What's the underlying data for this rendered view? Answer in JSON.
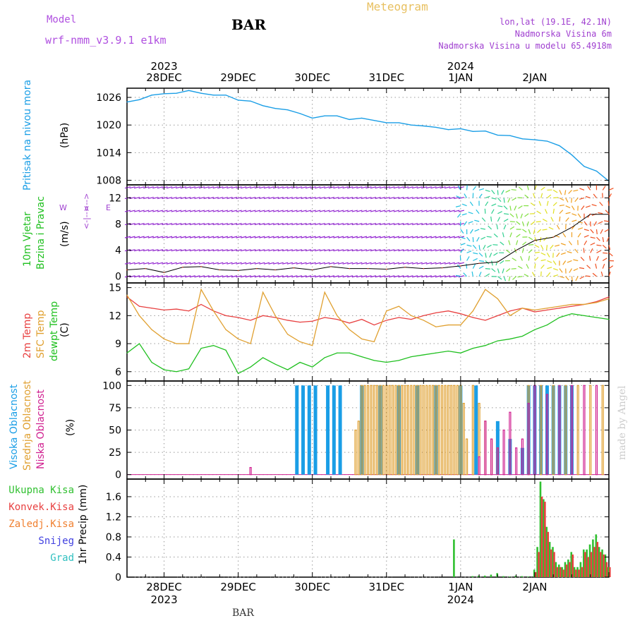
{
  "header": {
    "model_label": "Model",
    "model_name": "wrf-nmm_v3.9.1  e1km",
    "station": "BAR",
    "title": "Meteogram",
    "location": "lon,lat (19.1E, 42.1N)",
    "elevation": "Nadmorska Visina 6m",
    "model_elevation": "Nadmorska Visina u modelu 65.4918m"
  },
  "footer": {
    "station": "BAR",
    "watermark": "made by Angel"
  },
  "time_axis": {
    "top_years": [
      {
        "label": "2023",
        "index": 0
      },
      {
        "label": "2024",
        "index": 4
      }
    ],
    "days": [
      "28DEC",
      "29DEC",
      "30DEC",
      "31DEC",
      "1JAN",
      "2JAN"
    ],
    "bottom_years": [
      {
        "label": "2023",
        "index": 0
      },
      {
        "label": "2024",
        "index": 4
      }
    ],
    "x_range_hours": [
      -12,
      144
    ]
  },
  "colors": {
    "pressure": "#1a9ee6",
    "temp2m": "#e84040",
    "sfc_temp": "#e0a030",
    "dewpoint": "#20c020",
    "wind_arrows": "#9020d0",
    "high_cloud": "#1a9ee6",
    "mid_cloud": "#e0a030",
    "low_cloud": "#d02090",
    "total_precip": "#30c030",
    "conv_precip": "#e84040"
  },
  "panels": {
    "pressure": {
      "ylabel_main": "Pritisak na nivou mora",
      "ylabel_unit": "(hPa)"
    },
    "wind": {
      "ylabel_1": "10m Vjetar",
      "ylabel_2": "Brzina i Pravac",
      "ylabel_unit": "(m/s)",
      "compass_w": "W",
      "compass_e": "E",
      "compass_n": "<-->",
      "compass_s": "<-|-->"
    },
    "temp": {
      "ylabel_1": "2m Temp",
      "ylabel_2": "SFC Temp",
      "ylabel_3": "dewpt Temp",
      "ylabel_unit": "(C)"
    },
    "cloud": {
      "ylabel_1": "Visoka Oblacnost",
      "ylabel_2": "Srednja Oblacnost",
      "ylabel_3": "Niska Oblacnost",
      "ylabel_unit": "(%)"
    },
    "precip": {
      "legend": [
        "Ukupna Kisa",
        "Konvek.Kisa",
        "Zaledj.Kisa",
        "Snijeg",
        "Grad"
      ],
      "legend_colors": [
        "#30c030",
        "#e84040",
        "#f08030",
        "#4040e0",
        "#30c0c0"
      ],
      "ylabel": "1hr Precip (mm)"
    }
  },
  "chart_data": [
    {
      "type": "line",
      "title": "",
      "ylabel": "Pritisak na nivou mora (hPa)",
      "ylim": [
        1007,
        1028
      ],
      "yticks": [
        1008,
        1014,
        1020,
        1026
      ],
      "series": [
        {
          "name": "Pritisak na nivou mora",
          "x": [
            -12,
            -8,
            -4,
            0,
            4,
            8,
            12,
            16,
            20,
            24,
            28,
            32,
            36,
            40,
            44,
            48,
            52,
            56,
            60,
            64,
            68,
            72,
            76,
            80,
            84,
            88,
            92,
            96,
            100,
            104,
            108,
            112,
            116,
            120,
            124,
            128,
            132,
            136,
            140,
            144
          ],
          "values": [
            1025.0,
            1025.5,
            1026.5,
            1026.8,
            1026.9,
            1027.5,
            1026.9,
            1026.5,
            1026.5,
            1025.4,
            1025.2,
            1024.2,
            1023.6,
            1023.3,
            1022.5,
            1021.5,
            1022.0,
            1022.0,
            1021.2,
            1021.5,
            1021.0,
            1020.5,
            1020.5,
            1020.0,
            1019.8,
            1019.5,
            1019.0,
            1019.2,
            1018.6,
            1018.7,
            1017.8,
            1017.7,
            1017.0,
            1016.8,
            1016.5,
            1015.5,
            1013.5,
            1011.0,
            1010.0,
            1007.8
          ]
        }
      ]
    },
    {
      "type": "scatter",
      "title": "",
      "ylabel": "10m Vjetar Brzina i Pravac (m/s)",
      "ylim": [
        -1,
        14
      ],
      "yticks": [
        0,
        4,
        8,
        12
      ],
      "series": [
        {
          "name": "Brzina i Pravac",
          "x": [
            -12,
            -6,
            0,
            6,
            12,
            18,
            24,
            30,
            36,
            42,
            48,
            54,
            60,
            66,
            72,
            78,
            84,
            90,
            96,
            102,
            108,
            114,
            120,
            126,
            132,
            138,
            144
          ],
          "values": [
            1.0,
            1.2,
            0.6,
            1.4,
            1.5,
            1.0,
            0.9,
            1.2,
            1.0,
            1.3,
            1.0,
            1.5,
            1.2,
            1.2,
            1.1,
            1.4,
            1.2,
            1.3,
            1.6,
            2.0,
            2.2,
            4.0,
            5.5,
            6.0,
            7.5,
            9.5,
            9.5
          ]
        }
      ]
    },
    {
      "type": "line",
      "title": "",
      "ylabel": "(C)",
      "ylim": [
        5,
        15.5
      ],
      "yticks": [
        6,
        9,
        12,
        15
      ],
      "series": [
        {
          "name": "2m Temp",
          "x": [
            -12,
            -8,
            -4,
            0,
            4,
            8,
            12,
            16,
            20,
            24,
            28,
            32,
            36,
            40,
            44,
            48,
            52,
            56,
            60,
            64,
            68,
            72,
            76,
            80,
            84,
            88,
            92,
            96,
            100,
            104,
            108,
            112,
            116,
            120,
            124,
            128,
            132,
            136,
            140,
            144
          ],
          "values": [
            14.0,
            13.0,
            12.8,
            12.6,
            12.7,
            12.5,
            13.2,
            12.5,
            12.0,
            11.8,
            11.5,
            12.0,
            11.8,
            11.5,
            11.3,
            11.4,
            11.8,
            11.6,
            11.2,
            11.6,
            11.0,
            11.5,
            11.8,
            11.6,
            12.0,
            12.3,
            12.5,
            12.2,
            11.8,
            11.5,
            12.0,
            12.5,
            12.8,
            12.4,
            12.6,
            12.8,
            13.0,
            13.2,
            13.5,
            14.0
          ]
        },
        {
          "name": "SFC Temp",
          "x": [
            -12,
            -8,
            -4,
            0,
            4,
            8,
            12,
            16,
            20,
            24,
            28,
            32,
            36,
            40,
            44,
            48,
            52,
            56,
            60,
            64,
            68,
            72,
            76,
            80,
            84,
            88,
            92,
            96,
            100,
            104,
            108,
            112,
            116,
            120,
            124,
            128,
            132,
            136,
            140,
            144
          ],
          "values": [
            14.2,
            12.0,
            10.5,
            9.5,
            9.0,
            9.0,
            14.8,
            12.5,
            10.5,
            9.5,
            9.0,
            14.5,
            12.0,
            10.0,
            9.2,
            8.8,
            14.5,
            12.0,
            10.5,
            9.5,
            9.2,
            12.5,
            13.0,
            12.0,
            11.5,
            10.8,
            11.0,
            11.0,
            12.5,
            14.8,
            13.8,
            12.0,
            12.8,
            12.6,
            12.8,
            13.0,
            13.2,
            13.2,
            13.4,
            13.8
          ]
        },
        {
          "name": "dewpt Temp",
          "x": [
            -12,
            -8,
            -4,
            0,
            4,
            8,
            12,
            16,
            20,
            24,
            28,
            32,
            36,
            40,
            44,
            48,
            52,
            56,
            60,
            64,
            68,
            72,
            76,
            80,
            84,
            88,
            92,
            96,
            100,
            104,
            108,
            112,
            116,
            120,
            124,
            128,
            132,
            136,
            140,
            144
          ],
          "values": [
            8.0,
            9.0,
            7.0,
            6.2,
            6.0,
            6.3,
            8.5,
            8.8,
            8.3,
            5.8,
            6.5,
            7.5,
            6.8,
            6.2,
            7.0,
            6.5,
            7.5,
            8.0,
            8.0,
            7.6,
            7.2,
            7.0,
            7.2,
            7.6,
            7.8,
            8.0,
            8.2,
            8.0,
            8.5,
            8.8,
            9.3,
            9.5,
            9.8,
            10.5,
            11.0,
            11.8,
            12.2,
            12.0,
            11.8,
            11.6
          ]
        }
      ]
    },
    {
      "type": "bar",
      "title": "",
      "ylabel": "(%)",
      "ylim": [
        -5,
        105
      ],
      "yticks": [
        0,
        25,
        50,
        75,
        100
      ],
      "series": [
        {
          "name": "Visoka Oblacnost",
          "x": [
            43,
            45,
            47,
            49,
            53,
            55,
            57,
            64,
            70,
            76,
            82,
            88,
            96,
            101,
            108,
            112,
            116,
            118,
            120,
            122,
            124,
            126,
            128,
            130,
            132
          ],
          "values": [
            100,
            100,
            100,
            100,
            100,
            100,
            100,
            100,
            100,
            100,
            100,
            100,
            100,
            100,
            60,
            40,
            30,
            100,
            100,
            100,
            100,
            100,
            100,
            100,
            100
          ]
        },
        {
          "name": "Srednja Oblacnost",
          "x": [
            62,
            63,
            64,
            65,
            66,
            67,
            68,
            69,
            70,
            71,
            72,
            73,
            74,
            75,
            76,
            77,
            78,
            79,
            80,
            81,
            82,
            83,
            84,
            85,
            86,
            87,
            88,
            89,
            90,
            91,
            92,
            93,
            94,
            95,
            96,
            97,
            98,
            100,
            102,
            104,
            106,
            108,
            118,
            122,
            126,
            130,
            134,
            138,
            142
          ],
          "values": [
            50,
            60,
            100,
            100,
            100,
            100,
            100,
            100,
            100,
            100,
            100,
            100,
            100,
            100,
            100,
            100,
            100,
            100,
            100,
            100,
            100,
            100,
            100,
            100,
            100,
            100,
            100,
            100,
            100,
            100,
            100,
            100,
            100,
            100,
            100,
            80,
            40,
            100,
            80,
            60,
            40,
            30,
            100,
            100,
            100,
            100,
            100,
            100,
            100
          ]
        },
        {
          "name": "Niska Oblacnost",
          "x": [
            28,
            102,
            104,
            106,
            108,
            110,
            112,
            114,
            116,
            118,
            120,
            124,
            128,
            132,
            136,
            140
          ],
          "values": [
            8,
            20,
            60,
            40,
            30,
            50,
            70,
            30,
            40,
            80,
            100,
            90,
            100,
            100,
            100,
            100
          ]
        }
      ]
    },
    {
      "type": "bar",
      "title": "",
      "ylabel": "1hr Precip (mm)",
      "ylim": [
        0,
        1.95
      ],
      "yticks": [
        0,
        0.4,
        0.8,
        1.2,
        1.6
      ],
      "series": [
        {
          "name": "Ukupna Kisa",
          "x": [
            94,
            100,
            102,
            104,
            106,
            108,
            110,
            112,
            114,
            116,
            118,
            120,
            121,
            122,
            123,
            124,
            125,
            126,
            127,
            128,
            129,
            130,
            131,
            132,
            133,
            134,
            135,
            136,
            137,
            138,
            139,
            140,
            141,
            142,
            143,
            144
          ],
          "values": [
            0.75,
            0.02,
            0.03,
            0.03,
            0.05,
            0.08,
            0.02,
            0.01,
            0.03,
            0.02,
            0.01,
            0.15,
            0.6,
            1.9,
            1.55,
            1.0,
            0.7,
            0.6,
            0.3,
            0.25,
            0.2,
            0.3,
            0.35,
            0.5,
            0.2,
            0.2,
            0.3,
            0.55,
            0.55,
            0.65,
            0.75,
            0.85,
            0.6,
            0.55,
            0.45,
            0.2
          ]
        },
        {
          "name": "Konvek.Kisa",
          "x": [
            120,
            121,
            122,
            123,
            124,
            125,
            126,
            127,
            128,
            129,
            130,
            131,
            132,
            133,
            134,
            135,
            136,
            137,
            138,
            139,
            140,
            141,
            142,
            143,
            144
          ],
          "values": [
            0.1,
            0.5,
            1.6,
            1.5,
            0.9,
            0.55,
            0.5,
            0.2,
            0.2,
            0.15,
            0.25,
            0.3,
            0.45,
            0.15,
            0.15,
            0.2,
            0.5,
            0.4,
            0.5,
            0.6,
            0.7,
            0.5,
            0.45,
            0.3,
            0.2
          ]
        }
      ]
    }
  ]
}
